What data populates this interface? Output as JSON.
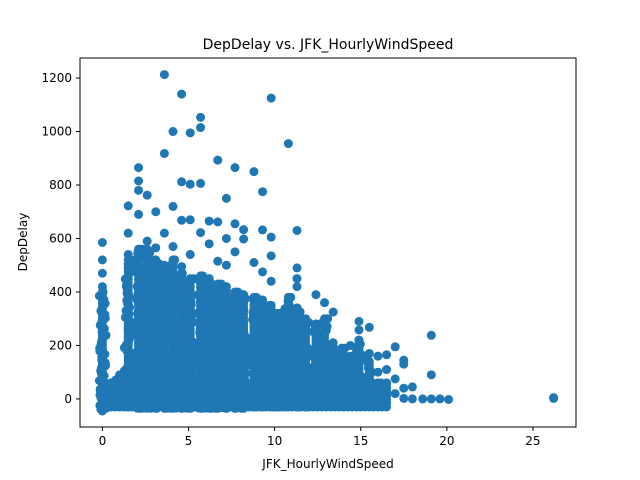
{
  "chart_data": {
    "type": "scatter",
    "title": "DepDelay vs. JFK_HourlyWindSpeed",
    "xlabel": "JFK_HourlyWindSpeed",
    "ylabel": "DepDelay",
    "xlim": [
      -1.3,
      27.5
    ],
    "ylim": [
      -105,
      1275
    ],
    "xticks": [
      0,
      5,
      10,
      15,
      20,
      25
    ],
    "yticks": [
      0,
      200,
      400,
      600,
      800,
      1000,
      1200
    ],
    "grid": false,
    "marker_color": "#1f77b4",
    "outliers": [
      {
        "x": 3.6,
        "y": 1213
      },
      {
        "x": 4.6,
        "y": 1140
      },
      {
        "x": 9.8,
        "y": 1125
      },
      {
        "x": 5.7,
        "y": 1053
      },
      {
        "x": 5.7,
        "y": 1015
      },
      {
        "x": 4.1,
        "y": 1000
      },
      {
        "x": 5.1,
        "y": 995
      },
      {
        "x": 10.8,
        "y": 955
      },
      {
        "x": 3.6,
        "y": 918
      },
      {
        "x": 6.7,
        "y": 893
      },
      {
        "x": 2.1,
        "y": 865
      },
      {
        "x": 7.7,
        "y": 865
      },
      {
        "x": 8.8,
        "y": 850
      },
      {
        "x": 2.1,
        "y": 815
      },
      {
        "x": 4.6,
        "y": 812
      },
      {
        "x": 5.1,
        "y": 803
      },
      {
        "x": 5.7,
        "y": 806
      },
      {
        "x": 2.1,
        "y": 780
      },
      {
        "x": 9.3,
        "y": 775
      },
      {
        "x": 2.6,
        "y": 762
      },
      {
        "x": 7.2,
        "y": 750
      },
      {
        "x": 1.5,
        "y": 722
      },
      {
        "x": 4.1,
        "y": 720
      },
      {
        "x": 2.1,
        "y": 690
      },
      {
        "x": 3.1,
        "y": 700
      },
      {
        "x": 4.6,
        "y": 668
      },
      {
        "x": 5.1,
        "y": 670
      },
      {
        "x": 6.2,
        "y": 665
      },
      {
        "x": 6.7,
        "y": 662
      },
      {
        "x": 7.7,
        "y": 655
      },
      {
        "x": 8.2,
        "y": 633
      },
      {
        "x": 9.3,
        "y": 632
      },
      {
        "x": 11.3,
        "y": 630
      },
      {
        "x": 1.5,
        "y": 620
      },
      {
        "x": 2.6,
        "y": 590
      },
      {
        "x": 3.6,
        "y": 620
      },
      {
        "x": 5.7,
        "y": 622
      },
      {
        "x": 7.2,
        "y": 600
      },
      {
        "x": 9.8,
        "y": 605
      },
      {
        "x": 0.0,
        "y": 585
      },
      {
        "x": 4.1,
        "y": 570
      },
      {
        "x": 6.2,
        "y": 580
      },
      {
        "x": 8.2,
        "y": 598
      },
      {
        "x": 1.5,
        "y": 540
      },
      {
        "x": 2.1,
        "y": 545
      },
      {
        "x": 3.1,
        "y": 565
      },
      {
        "x": 7.7,
        "y": 550
      },
      {
        "x": 9.8,
        "y": 535
      },
      {
        "x": 5.1,
        "y": 540
      },
      {
        "x": 0.0,
        "y": 520
      },
      {
        "x": 6.7,
        "y": 515
      },
      {
        "x": 8.8,
        "y": 510
      },
      {
        "x": 11.3,
        "y": 490
      },
      {
        "x": 4.6,
        "y": 495
      },
      {
        "x": 7.2,
        "y": 500
      },
      {
        "x": 9.3,
        "y": 475
      },
      {
        "x": 0.0,
        "y": 470
      },
      {
        "x": 11.3,
        "y": 450
      },
      {
        "x": 9.8,
        "y": 440
      },
      {
        "x": 11.3,
        "y": 420
      },
      {
        "x": 0.0,
        "y": 420
      },
      {
        "x": 12.4,
        "y": 390
      },
      {
        "x": 12.9,
        "y": 360
      },
      {
        "x": 13.4,
        "y": 325
      },
      {
        "x": 14.9,
        "y": 290
      },
      {
        "x": 15.5,
        "y": 268
      },
      {
        "x": 14.9,
        "y": 258
      },
      {
        "x": 19.1,
        "y": 238
      },
      {
        "x": 14.4,
        "y": 200
      },
      {
        "x": 15.5,
        "y": 170
      },
      {
        "x": 16.0,
        "y": 160
      },
      {
        "x": 16.5,
        "y": 165
      },
      {
        "x": 17.0,
        "y": 195
      },
      {
        "x": 17.5,
        "y": 145
      },
      {
        "x": 17.5,
        "y": 130
      },
      {
        "x": 16.5,
        "y": 110
      },
      {
        "x": 16.0,
        "y": 100
      },
      {
        "x": 19.1,
        "y": 90
      },
      {
        "x": 17.0,
        "y": 75
      },
      {
        "x": 16.5,
        "y": 60
      },
      {
        "x": 17.5,
        "y": 40
      },
      {
        "x": 18.0,
        "y": 45
      },
      {
        "x": 17.0,
        "y": 20
      },
      {
        "x": 17.5,
        "y": 2
      },
      {
        "x": 18.0,
        "y": 0
      },
      {
        "x": 18.6,
        "y": 0
      },
      {
        "x": 19.1,
        "y": 0
      },
      {
        "x": 19.6,
        "y": 0
      },
      {
        "x": 20.1,
        "y": -2
      },
      {
        "x": 26.2,
        "y": 5
      },
      {
        "x": 26.2,
        "y": 2
      },
      {
        "x": 0.0,
        "y": -45
      },
      {
        "x": 0.0,
        "y": -30
      }
    ],
    "dense_columns": [
      {
        "x": 0.0,
        "ymin": -40,
        "ymax": 400
      },
      {
        "x": 0.5,
        "ymin": -20,
        "ymax": 60
      },
      {
        "x": 1.0,
        "ymin": -25,
        "ymax": 90
      },
      {
        "x": 1.5,
        "ymin": -30,
        "ymax": 520
      },
      {
        "x": 2.1,
        "ymin": -35,
        "ymax": 560
      },
      {
        "x": 2.6,
        "ymin": -35,
        "ymax": 560
      },
      {
        "x": 3.1,
        "ymin": -35,
        "ymax": 520
      },
      {
        "x": 3.6,
        "ymin": -35,
        "ymax": 500
      },
      {
        "x": 4.1,
        "ymin": -35,
        "ymax": 520
      },
      {
        "x": 4.6,
        "ymin": -35,
        "ymax": 470
      },
      {
        "x": 5.1,
        "ymin": -35,
        "ymax": 450
      },
      {
        "x": 5.7,
        "ymin": -35,
        "ymax": 460
      },
      {
        "x": 6.2,
        "ymin": -35,
        "ymax": 450
      },
      {
        "x": 6.7,
        "ymin": -35,
        "ymax": 430
      },
      {
        "x": 7.2,
        "ymin": -35,
        "ymax": 420
      },
      {
        "x": 7.7,
        "ymin": -35,
        "ymax": 400
      },
      {
        "x": 8.2,
        "ymin": -35,
        "ymax": 390
      },
      {
        "x": 8.8,
        "ymin": -30,
        "ymax": 380
      },
      {
        "x": 9.3,
        "ymin": -30,
        "ymax": 370
      },
      {
        "x": 9.8,
        "ymin": -30,
        "ymax": 350
      },
      {
        "x": 10.3,
        "ymin": -30,
        "ymax": 320
      },
      {
        "x": 10.8,
        "ymin": -30,
        "ymax": 380
      },
      {
        "x": 11.3,
        "ymin": -30,
        "ymax": 340
      },
      {
        "x": 11.8,
        "ymin": -30,
        "ymax": 300
      },
      {
        "x": 12.4,
        "ymin": -25,
        "ymax": 280
      },
      {
        "x": 12.9,
        "ymin": -25,
        "ymax": 300
      },
      {
        "x": 13.4,
        "ymin": -20,
        "ymax": 210
      },
      {
        "x": 13.9,
        "ymin": -20,
        "ymax": 190
      },
      {
        "x": 14.4,
        "ymin": -15,
        "ymax": 160
      },
      {
        "x": 14.9,
        "ymin": -15,
        "ymax": 220
      },
      {
        "x": 15.5,
        "ymin": -10,
        "ymax": 140
      },
      {
        "x": 16.0,
        "ymin": -10,
        "ymax": 60
      }
    ]
  }
}
